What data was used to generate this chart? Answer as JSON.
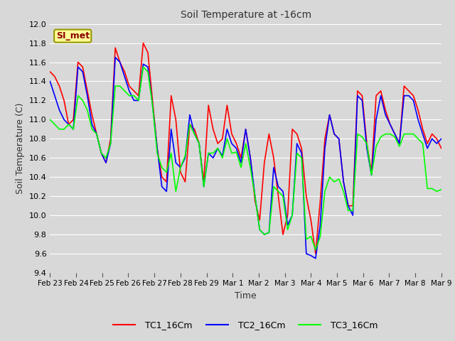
{
  "title": "Soil Temperature at -16cm",
  "xlabel": "Time",
  "ylabel": "Soil Temperature (C)",
  "ylim": [
    9.4,
    12.0
  ],
  "annotation": "SI_met",
  "background_color": "#d8d8d8",
  "plot_bg_color": "#d8d8d8",
  "grid_color": "white",
  "series": {
    "TC1_16Cm": {
      "color": "red",
      "linewidth": 1.2
    },
    "TC2_16Cm": {
      "color": "blue",
      "linewidth": 1.2
    },
    "TC3_16Cm": {
      "color": "lime",
      "linewidth": 1.2
    }
  },
  "x_tick_labels": [
    "Feb 23",
    "Feb 24",
    "Feb 25",
    "Feb 26",
    "Feb 27",
    "Feb 28",
    "Feb 29",
    "Mar 1",
    "Mar 2",
    "Mar 3",
    "Mar 4",
    "Mar 5",
    "Mar 6",
    "Mar 7",
    "Mar 8",
    "Mar 9"
  ],
  "yticks": [
    9.4,
    9.6,
    9.8,
    10.0,
    10.2,
    10.4,
    10.6,
    10.8,
    11.0,
    11.2,
    11.4,
    11.6,
    11.8,
    12.0
  ],
  "TC1_data": [
    11.5,
    11.45,
    11.35,
    11.2,
    10.95,
    11.0,
    11.6,
    11.55,
    11.3,
    11.05,
    10.85,
    10.65,
    10.55,
    10.8,
    11.75,
    11.6,
    11.5,
    11.35,
    11.3,
    11.25,
    11.8,
    11.7,
    11.2,
    10.7,
    10.4,
    10.35,
    11.25,
    11.0,
    10.45,
    10.35,
    10.95,
    10.9,
    10.75,
    10.35,
    11.15,
    10.9,
    10.75,
    10.8,
    11.15,
    10.85,
    10.75,
    10.6,
    10.9,
    10.6,
    10.15,
    9.95,
    10.55,
    10.85,
    10.6,
    10.2,
    9.8,
    10.0,
    10.9,
    10.85,
    10.7,
    10.2,
    9.95,
    9.6,
    10.15,
    10.8,
    11.05,
    10.85,
    10.8,
    10.35,
    10.1,
    10.1,
    11.3,
    11.25,
    10.75,
    10.45,
    11.25,
    11.3,
    11.1,
    10.95,
    10.85,
    10.75,
    11.35,
    11.3,
    11.25,
    11.1,
    10.9,
    10.75,
    10.85,
    10.8,
    10.7
  ],
  "TC2_data": [
    11.4,
    11.25,
    11.1,
    11.0,
    10.95,
    10.9,
    11.55,
    11.5,
    11.25,
    10.95,
    10.85,
    10.65,
    10.55,
    10.75,
    11.65,
    11.6,
    11.45,
    11.3,
    11.2,
    11.2,
    11.58,
    11.55,
    11.15,
    10.7,
    10.3,
    10.25,
    10.9,
    10.55,
    10.5,
    10.6,
    11.05,
    10.85,
    10.75,
    10.3,
    10.65,
    10.6,
    10.7,
    10.62,
    10.9,
    10.75,
    10.7,
    10.55,
    10.9,
    10.6,
    10.2,
    9.85,
    9.8,
    9.82,
    10.5,
    10.3,
    10.25,
    9.9,
    10.0,
    10.75,
    10.65,
    9.6,
    9.58,
    9.55,
    9.9,
    10.7,
    11.05,
    10.85,
    10.8,
    10.35,
    10.1,
    10.0,
    11.25,
    11.2,
    10.7,
    10.42,
    11.0,
    11.25,
    11.05,
    10.95,
    10.85,
    10.75,
    11.25,
    11.25,
    11.2,
    11.0,
    10.85,
    10.7,
    10.8,
    10.75,
    10.8
  ],
  "TC3_data": [
    11.0,
    10.95,
    10.9,
    10.9,
    10.95,
    10.9,
    11.25,
    11.2,
    11.1,
    10.9,
    10.85,
    10.65,
    10.6,
    10.75,
    11.35,
    11.35,
    11.3,
    11.25,
    11.25,
    11.2,
    11.55,
    11.5,
    11.15,
    10.65,
    10.5,
    10.45,
    10.65,
    10.25,
    10.5,
    10.62,
    10.95,
    10.85,
    10.75,
    10.3,
    10.65,
    10.65,
    10.7,
    10.6,
    10.8,
    10.65,
    10.66,
    10.5,
    10.75,
    10.5,
    10.2,
    9.85,
    9.8,
    9.82,
    10.3,
    10.25,
    10.2,
    9.85,
    10.0,
    10.65,
    10.6,
    9.75,
    9.78,
    9.64,
    9.78,
    10.25,
    10.4,
    10.35,
    10.38,
    10.25,
    10.05,
    10.05,
    10.85,
    10.82,
    10.75,
    10.42,
    10.72,
    10.82,
    10.85,
    10.85,
    10.82,
    10.72,
    10.85,
    10.85,
    10.85,
    10.8,
    10.75,
    10.28,
    10.28,
    10.25,
    10.27
  ]
}
